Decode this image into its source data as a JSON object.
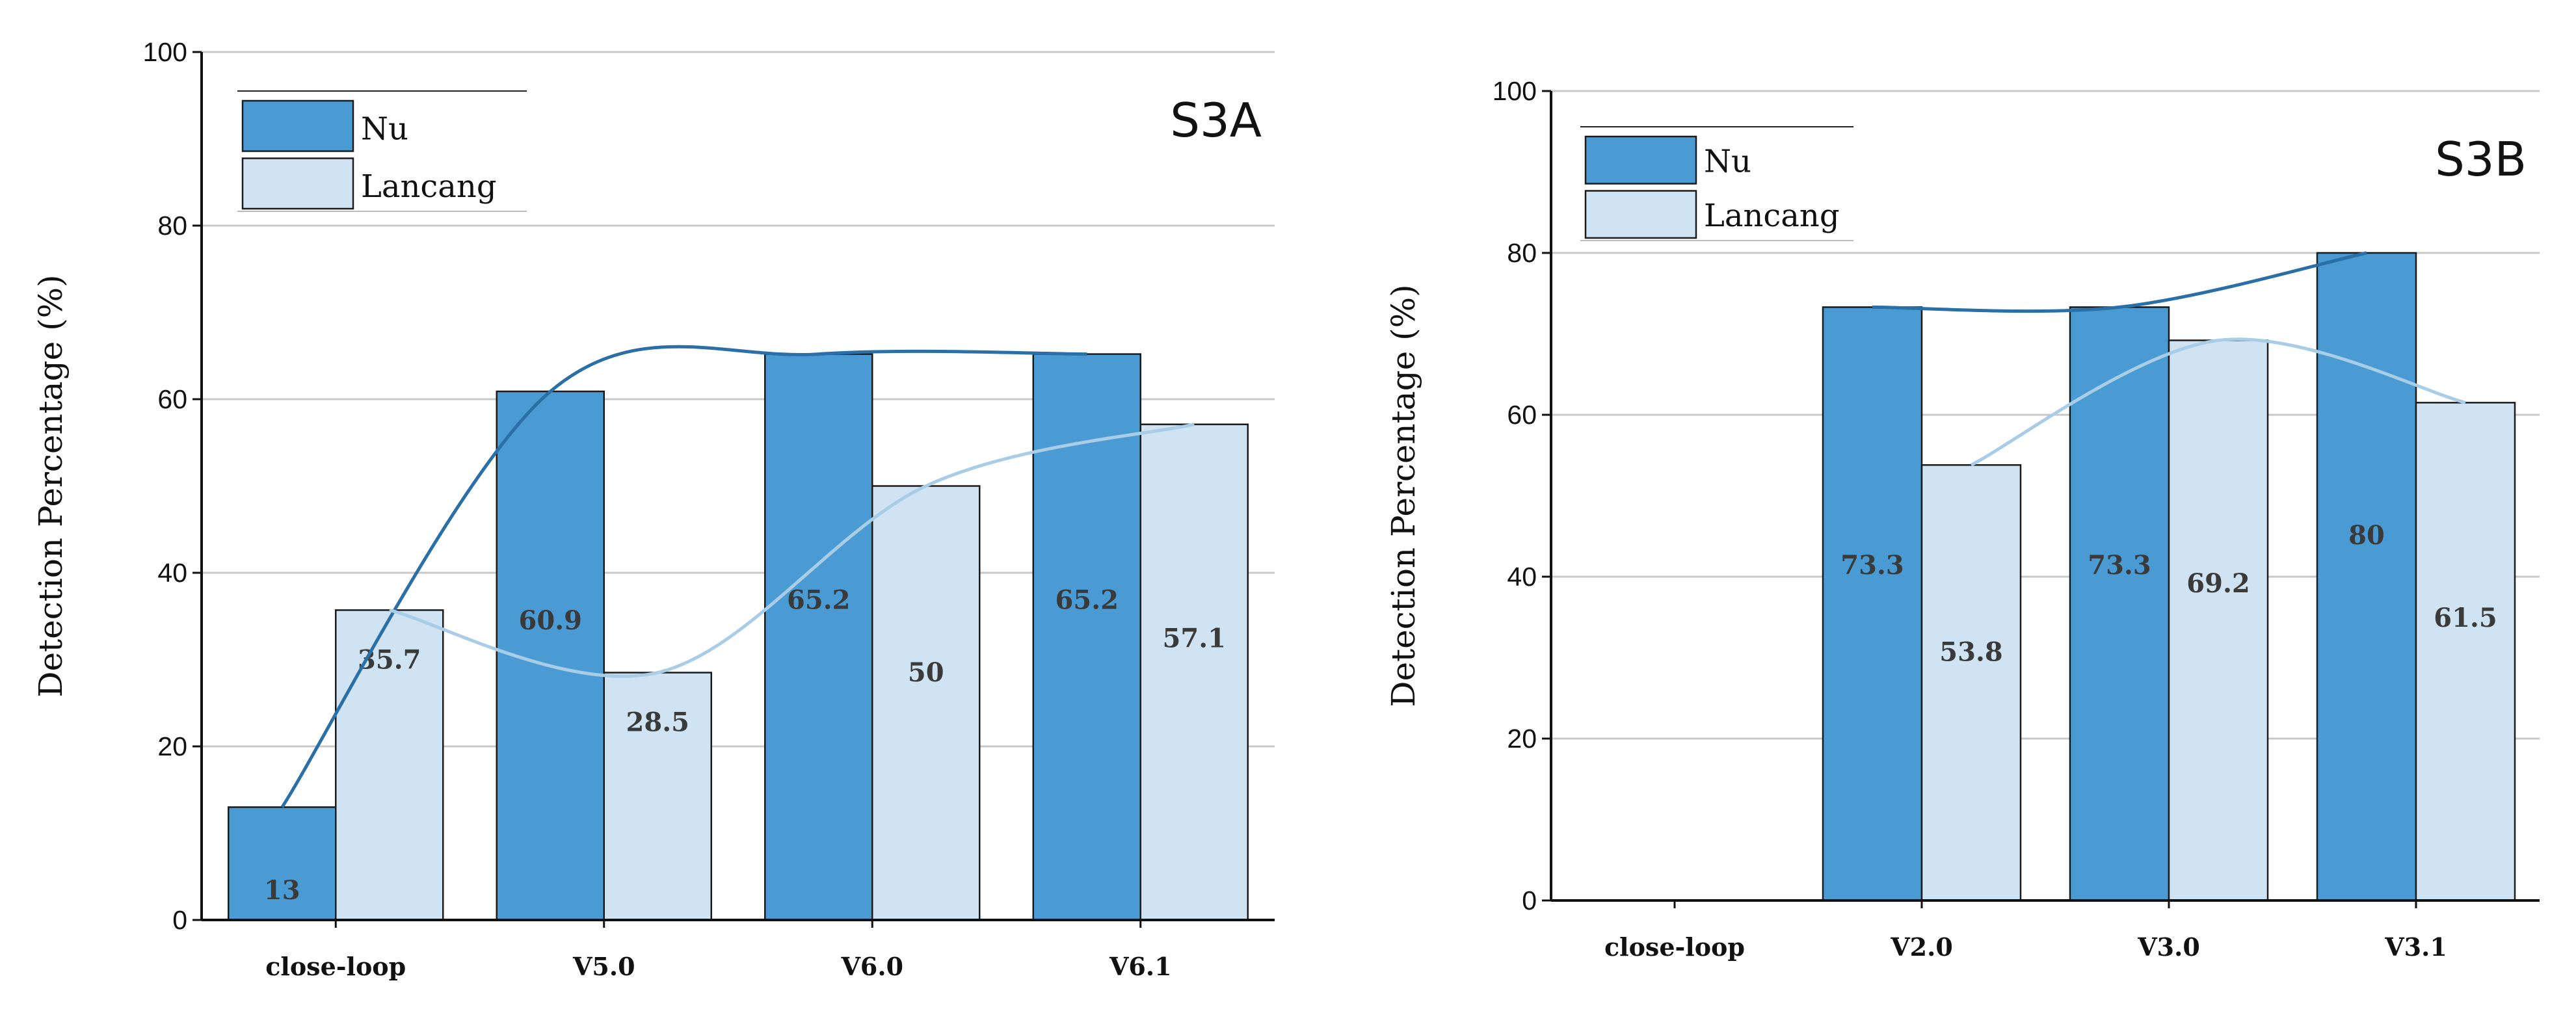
{
  "chart_data": [
    {
      "type": "bar",
      "title": "S3A",
      "xlabel": "",
      "ylabel": "Detection Percentage (%)",
      "ylim": [
        0,
        100
      ],
      "yticks": [
        0,
        20,
        40,
        60,
        80,
        100
      ],
      "categories": [
        "close-loop",
        "V5.0",
        "V6.0",
        "V6.1"
      ],
      "series": [
        {
          "name": "Nu",
          "values": [
            13,
            60.9,
            65.2,
            65.2
          ],
          "labels": [
            "13",
            "60.9",
            "65.2",
            "65.2"
          ],
          "color": "#4a9bd3"
        },
        {
          "name": "Lancang",
          "values": [
            35.7,
            28.5,
            50,
            57.1
          ],
          "labels": [
            "35.7",
            "28.5",
            "50",
            "57.1"
          ],
          "color": "#cfe3f2"
        }
      ],
      "trend_colors": [
        "#2a6fa6",
        "#a9cde6"
      ],
      "grid": true,
      "legend": "top-left"
    },
    {
      "type": "bar",
      "title": "S3B",
      "xlabel": "",
      "ylabel": "Detection Percentage (%)",
      "ylim": [
        0,
        100
      ],
      "yticks": [
        0,
        20,
        40,
        60,
        80,
        100
      ],
      "categories": [
        "close-loop",
        "V2.0",
        "V3.0",
        "V3.1"
      ],
      "series": [
        {
          "name": "Nu",
          "values": [
            null,
            73.3,
            73.3,
            80
          ],
          "labels": [
            "",
            "73.3",
            "73.3",
            "80"
          ],
          "color": "#4a9bd3"
        },
        {
          "name": "Lancang",
          "values": [
            null,
            53.8,
            69.2,
            61.5
          ],
          "labels": [
            "",
            "53.8",
            "69.2",
            "61.5"
          ],
          "color": "#cfe3f2"
        }
      ],
      "trend_colors": [
        "#2a6fa6",
        "#a9cde6"
      ],
      "grid": true,
      "legend": "top-left"
    }
  ]
}
